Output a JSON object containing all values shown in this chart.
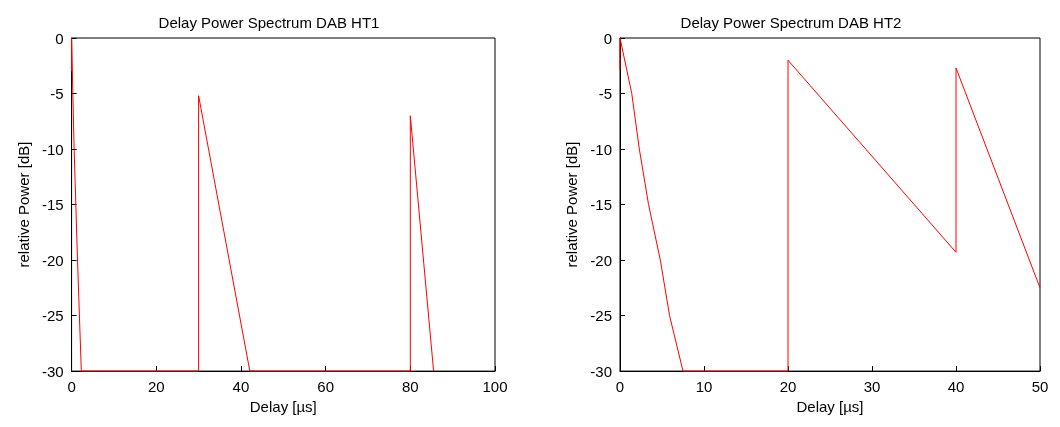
{
  "chart_data": [
    {
      "type": "line",
      "title": "Delay Power Spectrum DAB HT1",
      "xlabel": "Delay [µs]",
      "ylabel": "relative Power [dB]",
      "xlim": [
        0,
        100
      ],
      "xticks": [
        0,
        20,
        40,
        60,
        80,
        100
      ],
      "ylim": [
        -30,
        0
      ],
      "yticks": [
        -30,
        -25,
        -20,
        -15,
        -10,
        -5,
        0
      ],
      "grid": false,
      "marker": "none",
      "line_style": "solid",
      "series": [
        {
          "color": "#ff0000",
          "x": [
            0,
            0,
            0.6,
            1.4,
            2.3,
            30,
            30,
            42.1,
            80,
            80,
            85.5
          ],
          "values": [
            -3,
            0,
            -10,
            -20,
            -30,
            -30,
            -5.2,
            -30,
            -30,
            -7,
            -30
          ]
        }
      ]
    },
    {
      "type": "line",
      "title": "Delay Power Spectrum DAB HT2",
      "xlabel": "Delay [µs]",
      "ylabel": "relative Power [dB]",
      "xlim": [
        0,
        50
      ],
      "xticks": [
        0,
        10,
        20,
        30,
        40,
        50
      ],
      "ylim": [
        -30,
        0
      ],
      "yticks": [
        -30,
        -25,
        -20,
        -15,
        -10,
        -5,
        0
      ],
      "grid": false,
      "marker": "none",
      "line_style": "solid",
      "series": [
        {
          "color": "#ff0000",
          "x": [
            0,
            0,
            1.4,
            2.3,
            3.4,
            4.8,
            5.9,
            7.5,
            20,
            20,
            40,
            40,
            50
          ],
          "values": [
            -2.8,
            0,
            -5,
            -10,
            -15,
            -20,
            -25,
            -30,
            -30,
            -2,
            -19.3,
            -2.7,
            -22.5
          ]
        }
      ]
    }
  ]
}
